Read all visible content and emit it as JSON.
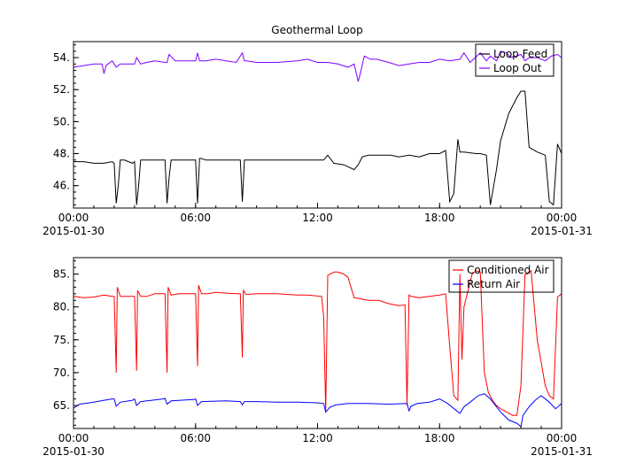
{
  "figure": {
    "background": "#ffffff"
  },
  "chart_data": [
    {
      "type": "line",
      "title": "Geothermal Loop",
      "xlabel": "",
      "ylabel": "",
      "x_domain_hours": [
        0,
        24
      ],
      "x_ticks": [
        {
          "hour": 0,
          "label": "00:00",
          "sublabel": "2015-01-30"
        },
        {
          "hour": 6,
          "label": "06:00",
          "sublabel": ""
        },
        {
          "hour": 12,
          "label": "12:00",
          "sublabel": ""
        },
        {
          "hour": 18,
          "label": "18:00",
          "sublabel": ""
        },
        {
          "hour": 24,
          "label": "00:00",
          "sublabel": "2015-01-31"
        }
      ],
      "ylim": [
        44.6,
        55.0
      ],
      "y_ticks": [
        46,
        48,
        50,
        52,
        54
      ],
      "y_tick_labels": [
        "46.",
        "48.",
        "50.",
        "52.",
        "54."
      ],
      "legend": {
        "position": "top-right"
      },
      "grid": false,
      "series": [
        {
          "name": "Loop Feed",
          "color": "#000000",
          "x": [
            0,
            0.5,
            1,
            1.5,
            1.9,
            2.0,
            2.1,
            2.2,
            2.3,
            2.5,
            2.9,
            3.0,
            3.1,
            3.2,
            3.3,
            3.6,
            4.0,
            4.4,
            4.5,
            4.6,
            4.7,
            4.8,
            5.2,
            5.8,
            6.0,
            6.1,
            6.2,
            6.3,
            6.5,
            7.0,
            7.5,
            8.0,
            8.2,
            8.3,
            8.4,
            8.5,
            9.0,
            10,
            11,
            11.8,
            12.0,
            12.3,
            12.5,
            12.8,
            13.3,
            13.8,
            14.0,
            14.2,
            14.5,
            15.0,
            15.6,
            16.0,
            16.5,
            17.0,
            17.5,
            18.0,
            18.3,
            18.5,
            18.7,
            18.9,
            19.0,
            19.2,
            19.8,
            20.0,
            20.3,
            20.5,
            20.8,
            21.0,
            21.4,
            21.8,
            22.0,
            22.2,
            22.4,
            22.8,
            23.2,
            23.4,
            23.6,
            23.8,
            24.0
          ],
          "values": [
            47.5,
            47.5,
            47.4,
            47.4,
            47.5,
            47.4,
            44.9,
            46.0,
            47.6,
            47.6,
            47.4,
            47.5,
            44.8,
            46.0,
            47.6,
            47.6,
            47.6,
            47.6,
            47.6,
            44.9,
            46.5,
            47.6,
            47.6,
            47.6,
            47.6,
            44.9,
            47.7,
            47.7,
            47.6,
            47.6,
            47.6,
            47.6,
            47.6,
            45.0,
            47.6,
            47.6,
            47.6,
            47.6,
            47.6,
            47.6,
            47.6,
            47.6,
            47.9,
            47.4,
            47.3,
            47.0,
            47.3,
            47.8,
            47.9,
            47.9,
            47.9,
            47.8,
            47.9,
            47.8,
            48.0,
            48.0,
            48.2,
            45.0,
            45.5,
            48.9,
            48.1,
            48.1,
            48.0,
            48.0,
            47.9,
            44.8,
            47.0,
            48.8,
            50.5,
            51.5,
            51.9,
            51.9,
            48.4,
            48.1,
            47.9,
            45.0,
            44.8,
            48.6,
            48.0
          ]
        },
        {
          "name": "Loop Out",
          "color": "#8000ff",
          "x": [
            0,
            0.5,
            1.0,
            1.4,
            1.5,
            1.6,
            1.9,
            2.1,
            2.3,
            2.6,
            3.0,
            3.1,
            3.3,
            3.6,
            4.0,
            4.5,
            4.6,
            4.7,
            5.0,
            5.5,
            6.0,
            6.1,
            6.2,
            6.5,
            7.0,
            7.5,
            8.0,
            8.3,
            8.4,
            8.5,
            9,
            10,
            11,
            11.5,
            12,
            12.5,
            13,
            13.5,
            13.8,
            14.0,
            14.1,
            14.3,
            14.6,
            14.9,
            15.5,
            16.0,
            16.5,
            17,
            17.5,
            18.0,
            18.5,
            19.0,
            19.2,
            19.5,
            20.0,
            20.3,
            20.5,
            20.8,
            21.0,
            21.3,
            21.5,
            22.0,
            22.2,
            22.4,
            22.8,
            23.2,
            23.5,
            23.8,
            24.0
          ],
          "values": [
            53.4,
            53.5,
            53.6,
            53.6,
            53.0,
            53.5,
            53.8,
            53.4,
            53.6,
            53.6,
            53.6,
            54.0,
            53.6,
            53.7,
            53.8,
            53.7,
            53.7,
            54.2,
            53.8,
            53.8,
            53.8,
            54.3,
            53.8,
            53.8,
            53.9,
            53.8,
            53.7,
            54.3,
            53.8,
            53.8,
            53.7,
            53.7,
            53.8,
            53.9,
            53.7,
            53.7,
            53.6,
            53.4,
            53.6,
            52.5,
            53.0,
            54.1,
            53.9,
            53.9,
            53.7,
            53.5,
            53.6,
            53.7,
            53.7,
            53.9,
            53.8,
            53.9,
            54.3,
            53.7,
            54.3,
            53.8,
            54.1,
            53.8,
            54.4,
            54.3,
            54.0,
            54.2,
            53.8,
            54.0,
            54.0,
            53.8,
            54.1,
            54.2,
            54.0
          ]
        }
      ]
    },
    {
      "type": "line",
      "title": "",
      "xlabel": "",
      "ylabel": "",
      "x_domain_hours": [
        0,
        24
      ],
      "x_ticks": [
        {
          "hour": 0,
          "label": "00:00",
          "sublabel": "2015-01-30"
        },
        {
          "hour": 6,
          "label": "06:00",
          "sublabel": ""
        },
        {
          "hour": 12,
          "label": "12:00",
          "sublabel": ""
        },
        {
          "hour": 18,
          "label": "18:00",
          "sublabel": ""
        },
        {
          "hour": 24,
          "label": "00:00",
          "sublabel": "2015-01-31"
        }
      ],
      "ylim": [
        61.5,
        87.5
      ],
      "y_ticks": [
        65,
        70,
        75,
        80,
        85
      ],
      "y_tick_labels": [
        "65.",
        "70.",
        "75.",
        "80.",
        "85."
      ],
      "legend": {
        "position": "top-right"
      },
      "grid": false,
      "series": [
        {
          "name": "Conditioned Air",
          "color": "#ff0000",
          "x": [
            0,
            0.5,
            1,
            1.5,
            1.9,
            2.0,
            2.1,
            2.15,
            2.3,
            2.5,
            2.9,
            3.0,
            3.1,
            3.15,
            3.3,
            3.6,
            4.0,
            4.4,
            4.5,
            4.6,
            4.65,
            4.8,
            5.2,
            5.8,
            6.0,
            6.1,
            6.15,
            6.3,
            6.6,
            7.0,
            7.5,
            8.0,
            8.2,
            8.3,
            8.35,
            8.5,
            9,
            10,
            11,
            11.5,
            11.9,
            12.2,
            12.3,
            12.4,
            12.5,
            12.8,
            13.0,
            13.3,
            13.5,
            13.8,
            14.0,
            14.5,
            15.0,
            15.5,
            15.8,
            16.0,
            16.3,
            16.4,
            16.5,
            16.6,
            16.8,
            17.0,
            17.5,
            18.0,
            18.3,
            18.5,
            18.7,
            18.9,
            19.0,
            19.1,
            19.2,
            19.6,
            19.8,
            20.0,
            20.2,
            20.4,
            20.6,
            20.8,
            21.0,
            21.3,
            21.6,
            21.8,
            22.0,
            22.2,
            22.3,
            22.5,
            22.8,
            23.2,
            23.4,
            23.6,
            23.8,
            24.0
          ],
          "values": [
            81.6,
            81.4,
            81.5,
            81.8,
            81.6,
            81.6,
            70.0,
            83.0,
            81.6,
            81.6,
            81.6,
            81.6,
            70.3,
            82.5,
            81.6,
            81.6,
            82.0,
            82.0,
            82.0,
            70.0,
            83.0,
            81.8,
            82.0,
            82.0,
            82.0,
            71.0,
            83.3,
            82.0,
            82.0,
            82.2,
            82.1,
            82.0,
            82.0,
            72.3,
            82.5,
            81.9,
            82.0,
            82.0,
            81.8,
            81.8,
            81.7,
            81.6,
            78.5,
            64.0,
            84.8,
            85.3,
            85.3,
            85.0,
            84.5,
            81.4,
            81.3,
            81.0,
            81.0,
            80.5,
            80.3,
            80.2,
            80.3,
            65.0,
            81.8,
            81.6,
            81.5,
            81.4,
            81.6,
            81.8,
            82.0,
            74.0,
            66.5,
            65.8,
            85.0,
            72.0,
            80.0,
            85.0,
            85.5,
            85.3,
            70.0,
            67.0,
            65.8,
            65.0,
            64.5,
            64.0,
            63.5,
            63.5,
            68.0,
            85.0,
            85.0,
            85.5,
            75.0,
            68.0,
            66.5,
            66.0,
            81.5,
            82.0
          ]
        },
        {
          "name": "Return Air",
          "color": "#0000ff",
          "x": [
            0,
            0.3,
            1.0,
            1.5,
            1.9,
            2.0,
            2.1,
            2.3,
            2.9,
            3.0,
            3.1,
            3.3,
            4.4,
            4.5,
            4.6,
            4.8,
            5.9,
            6.0,
            6.1,
            6.3,
            7.5,
            8.2,
            8.3,
            8.4,
            9,
            10,
            11,
            12.0,
            12.3,
            12.4,
            12.6,
            12.9,
            13.5,
            14.5,
            15.5,
            16.4,
            16.5,
            16.6,
            16.9,
            17.5,
            18.0,
            18.4,
            18.8,
            19.0,
            19.2,
            19.5,
            19.9,
            20.2,
            20.5,
            21.0,
            21.4,
            21.8,
            22.0,
            22.1,
            22.4,
            22.7,
            23.0,
            23.4,
            23.7,
            24.0
          ],
          "values": [
            64.6,
            65.2,
            65.5,
            65.8,
            66.0,
            66.0,
            64.9,
            65.5,
            65.8,
            66.0,
            65.0,
            65.6,
            66.0,
            66.1,
            65.2,
            65.7,
            65.9,
            66.0,
            65.0,
            65.6,
            65.7,
            65.6,
            65.1,
            65.6,
            65.6,
            65.5,
            65.5,
            65.4,
            65.3,
            64.0,
            64.7,
            65.1,
            65.3,
            65.3,
            65.2,
            65.3,
            64.2,
            64.9,
            65.3,
            65.5,
            66.0,
            65.3,
            64.3,
            63.8,
            64.8,
            65.5,
            66.5,
            66.8,
            66.0,
            64.0,
            62.8,
            62.3,
            61.8,
            63.5,
            64.8,
            65.8,
            66.5,
            65.5,
            64.5,
            65.3
          ]
        }
      ]
    }
  ]
}
